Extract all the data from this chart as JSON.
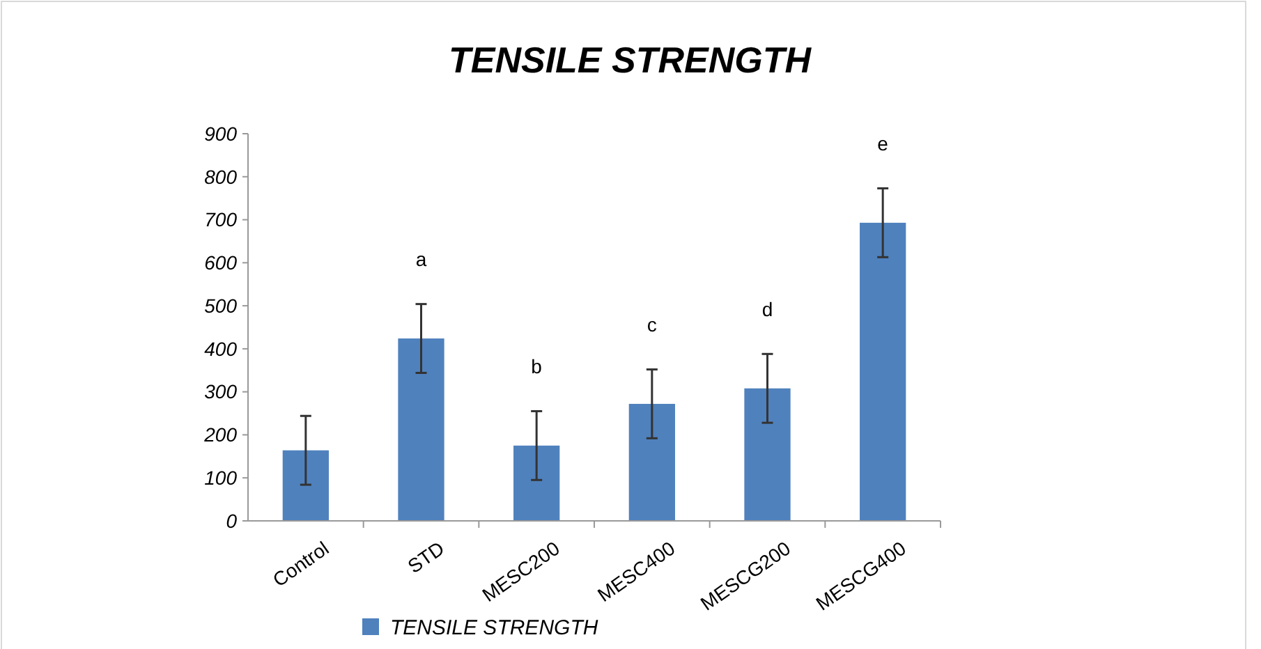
{
  "chart_data": {
    "type": "bar",
    "title": "TENSILE STRENGTH",
    "categories": [
      "Control",
      "STD",
      "MESC200",
      "MESC400",
      "MESCG200",
      "MESCG400"
    ],
    "series": [
      {
        "name": "TENSILE STRENGTH",
        "color": "#4f81bd",
        "values": [
          164,
          424,
          175,
          272,
          308,
          693
        ],
        "errors": [
          80,
          80,
          80,
          80,
          80,
          80
        ]
      }
    ],
    "ylim": [
      0,
      900
    ],
    "yticks": [
      0,
      100,
      200,
      300,
      400,
      500,
      600,
      700,
      800,
      900
    ],
    "annotations": [
      "a",
      "b",
      "c",
      "d",
      "e"
    ],
    "grid": false,
    "legend": "bottom"
  }
}
